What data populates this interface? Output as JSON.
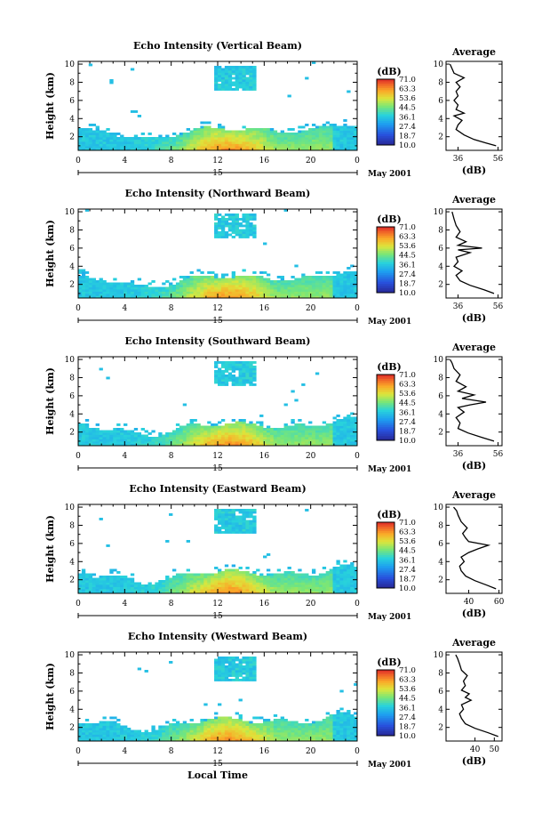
{
  "chart_data": [
    {
      "type": "heatmap",
      "title": "Echo Intensity (Vertical Beam)",
      "ylabel": "Height (km)",
      "xticks": [
        "0",
        "4",
        "8",
        "12",
        "16",
        "20",
        "0"
      ],
      "yticks": [
        "2",
        "4",
        "6",
        "8",
        "10"
      ],
      "xlim": [
        0,
        24
      ],
      "ylim": [
        0.5,
        10.3
      ],
      "date_marker": "15",
      "date_label": "May 2001",
      "colorbar": {
        "unit": "(dB)",
        "ticks": [
          "71.0",
          "63.3",
          "53.6",
          "44.5",
          "36.1",
          "27.4",
          "18.7",
          "10.0"
        ]
      },
      "average_profile": {
        "title": "Average",
        "xlabel": "(dB)",
        "xticks": [
          "36",
          "56"
        ],
        "xlim": [
          30,
          58
        ],
        "yticks": [
          "2",
          "4",
          "6",
          "8",
          "10"
        ],
        "y": [
          1,
          1.3,
          1.7,
          2.2,
          2.8,
          3.3,
          3.8,
          4.3,
          4.6,
          5.0,
          5.5,
          6.0,
          6.5,
          7.0,
          7.5,
          8.0,
          8.5,
          9.0,
          9.5,
          10
        ],
        "x": [
          55,
          50,
          44,
          39,
          35,
          36,
          38,
          34,
          39,
          35,
          36,
          34,
          36,
          35,
          37,
          35,
          39,
          34,
          33,
          32
        ]
      }
    },
    {
      "type": "heatmap",
      "title": "Echo Intensity (Northward Beam)",
      "ylabel": "Height (km)",
      "xticks": [
        "0",
        "4",
        "8",
        "12",
        "16",
        "20",
        "0"
      ],
      "yticks": [
        "2",
        "4",
        "6",
        "8",
        "10"
      ],
      "xlim": [
        0,
        24
      ],
      "ylim": [
        0.5,
        10.3
      ],
      "date_marker": "15",
      "date_label": "May 2001",
      "colorbar": {
        "unit": "(dB)",
        "ticks": [
          "71.0",
          "63.3",
          "53.6",
          "44.5",
          "36.1",
          "27.4",
          "18.7",
          "10.0"
        ]
      },
      "average_profile": {
        "title": "Average",
        "xlabel": "(dB)",
        "xticks": [
          "36",
          "56"
        ],
        "xlim": [
          30,
          58
        ],
        "yticks": [
          "2",
          "4",
          "6",
          "8",
          "10"
        ],
        "y": [
          1,
          1.4,
          1.9,
          2.4,
          3.0,
          3.5,
          4.0,
          4.5,
          5.0,
          5.5,
          5.8,
          6.0,
          6.3,
          6.7,
          7.2,
          7.8,
          8.5,
          9.2,
          10
        ],
        "x": [
          54,
          49,
          42,
          37,
          35,
          38,
          34,
          36,
          35,
          42,
          36,
          48,
          36,
          40,
          35,
          37,
          35,
          34,
          33
        ]
      }
    },
    {
      "type": "heatmap",
      "title": "Echo Intensity (Southward Beam)",
      "ylabel": "Height (km)",
      "xticks": [
        "0",
        "4",
        "8",
        "12",
        "16",
        "20",
        "0"
      ],
      "yticks": [
        "2",
        "4",
        "6",
        "8",
        "10"
      ],
      "xlim": [
        0,
        24
      ],
      "ylim": [
        0.5,
        10.3
      ],
      "date_marker": "15",
      "date_label": "May 2001",
      "colorbar": {
        "unit": "(dB)",
        "ticks": [
          "71.0",
          "63.3",
          "53.6",
          "44.5",
          "36.1",
          "27.4",
          "18.7",
          "10.0"
        ]
      },
      "average_profile": {
        "title": "Average",
        "xlabel": "(dB)",
        "xticks": [
          "36",
          "56"
        ],
        "xlim": [
          30,
          58
        ],
        "yticks": [
          "2",
          "4",
          "6",
          "8",
          "10"
        ],
        "y": [
          1,
          1.4,
          1.9,
          2.4,
          3.0,
          3.6,
          4.2,
          4.7,
          5.0,
          5.3,
          5.7,
          6.1,
          6.5,
          7.0,
          7.6,
          8.3,
          9.0,
          9.6,
          10
        ],
        "x": [
          54,
          48,
          41,
          36,
          37,
          35,
          39,
          36,
          42,
          50,
          38,
          44,
          36,
          40,
          35,
          37,
          34,
          33,
          32
        ]
      }
    },
    {
      "type": "heatmap",
      "title": "Echo Intensity (Eastward Beam)",
      "ylabel": "Height (km)",
      "xticks": [
        "0",
        "4",
        "8",
        "12",
        "16",
        "20",
        "0"
      ],
      "yticks": [
        "2",
        "4",
        "6",
        "8",
        "10"
      ],
      "xlim": [
        0,
        24
      ],
      "ylim": [
        0.5,
        10.3
      ],
      "date_marker": "15",
      "date_label": "May 2001",
      "colorbar": {
        "unit": "(dB)",
        "ticks": [
          "71.0",
          "63.3",
          "53.6",
          "44.5",
          "36.1",
          "27.4",
          "18.7",
          "10.0"
        ]
      },
      "average_profile": {
        "title": "Average",
        "xlabel": "(dB)",
        "xticks": [
          "40",
          "60"
        ],
        "xlim": [
          25,
          62
        ],
        "yticks": [
          "2",
          "4",
          "6",
          "8",
          "10"
        ],
        "y": [
          1,
          1.4,
          1.9,
          2.4,
          3.0,
          3.5,
          4.0,
          4.5,
          5.0,
          5.4,
          5.8,
          6.2,
          6.6,
          7.1,
          7.7,
          8.4,
          9.1,
          9.6,
          10
        ],
        "x": [
          58,
          52,
          44,
          38,
          35,
          34,
          37,
          35,
          40,
          46,
          53,
          40,
          38,
          36,
          39,
          35,
          33,
          32,
          30
        ]
      }
    },
    {
      "type": "heatmap",
      "title": "Echo Intensity (Westward Beam)",
      "ylabel": "Height (km)",
      "xticks": [
        "0",
        "4",
        "8",
        "12",
        "16",
        "20",
        "0"
      ],
      "yticks": [
        "2",
        "4",
        "6",
        "8",
        "10"
      ],
      "xlim": [
        0,
        24
      ],
      "ylim": [
        0.5,
        10.3
      ],
      "date_marker": "15",
      "date_label": "May 2001",
      "xlabel": "Local Time",
      "colorbar": {
        "unit": "(dB)",
        "ticks": [
          "71.0",
          "63.3",
          "53.6",
          "44.5",
          "36.1",
          "27.4",
          "18.7",
          "10.0"
        ]
      },
      "average_profile": {
        "title": "Average",
        "xlabel": "(dB)",
        "xticks": [
          "40",
          "50"
        ],
        "xlim": [
          25,
          54
        ],
        "yticks": [
          "2",
          "4",
          "6",
          "8",
          "10"
        ],
        "y": [
          1,
          1.4,
          1.9,
          2.4,
          3.0,
          3.5,
          4.0,
          4.5,
          5.0,
          5.3,
          5.7,
          6.1,
          6.6,
          7.1,
          7.7,
          8.3,
          9.0,
          9.6,
          10
        ],
        "x": [
          52,
          47,
          40,
          35,
          33,
          32,
          34,
          33,
          38,
          35,
          37,
          33,
          35,
          34,
          36,
          33,
          32,
          31,
          30
        ]
      }
    }
  ]
}
